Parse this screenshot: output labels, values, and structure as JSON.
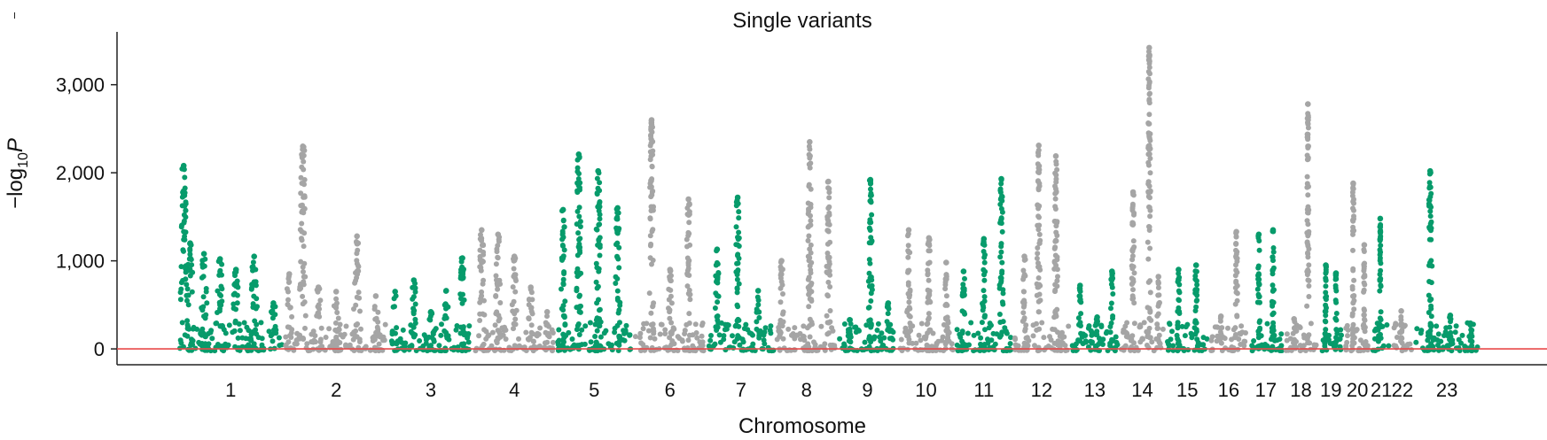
{
  "chart_data": {
    "type": "scatter",
    "subtype": "manhattan",
    "title": "Single variants",
    "xlabel": "Chromosome",
    "ylabel_main": "−log",
    "ylabel_sub": "10",
    "ylabel_italic": "P",
    "ylim": [
      -180,
      3600
    ],
    "yticks": [
      0,
      1000,
      2000,
      3000
    ],
    "ytick_labels": [
      "0",
      "1,000",
      "2,000",
      "3,000"
    ],
    "threshold": 0,
    "colors": {
      "green": "#079b6b",
      "gray": "#a5a5a5",
      "threshold": "#e84a4a",
      "axis": "#222222"
    },
    "chromosomes": [
      {
        "label": "1",
        "color": "green",
        "peaks": [
          [
            0.06,
            2080
          ],
          [
            0.12,
            1200
          ],
          [
            0.25,
            1080
          ],
          [
            0.4,
            1020
          ],
          [
            0.55,
            900
          ],
          [
            0.72,
            1050
          ],
          [
            0.9,
            520
          ]
        ]
      },
      {
        "label": "2",
        "color": "gray",
        "peaks": [
          [
            0.05,
            850
          ],
          [
            0.18,
            2300
          ],
          [
            0.33,
            700
          ],
          [
            0.5,
            650
          ],
          [
            0.7,
            1280
          ],
          [
            0.88,
            600
          ]
        ]
      },
      {
        "label": "3",
        "color": "green",
        "peaks": [
          [
            0.08,
            650
          ],
          [
            0.3,
            780
          ],
          [
            0.5,
            420
          ],
          [
            0.68,
            660
          ],
          [
            0.87,
            1030
          ]
        ]
      },
      {
        "label": "4",
        "color": "gray",
        "peaks": [
          [
            0.1,
            1350
          ],
          [
            0.3,
            1300
          ],
          [
            0.5,
            1050
          ],
          [
            0.7,
            700
          ],
          [
            0.9,
            420
          ]
        ]
      },
      {
        "label": "5",
        "color": "green",
        "peaks": [
          [
            0.1,
            1580
          ],
          [
            0.3,
            2210
          ],
          [
            0.55,
            2020
          ],
          [
            0.8,
            1600
          ]
        ]
      },
      {
        "label": "6",
        "color": "gray",
        "peaks": [
          [
            0.25,
            2600
          ],
          [
            0.5,
            900
          ],
          [
            0.75,
            1700
          ]
        ]
      },
      {
        "label": "7",
        "color": "green",
        "peaks": [
          [
            0.15,
            1130
          ],
          [
            0.45,
            1720
          ],
          [
            0.75,
            660
          ]
        ]
      },
      {
        "label": "8",
        "color": "gray",
        "peaks": [
          [
            0.1,
            1000
          ],
          [
            0.55,
            2350
          ],
          [
            0.85,
            1900
          ]
        ]
      },
      {
        "label": "9",
        "color": "green",
        "peaks": [
          [
            0.2,
            330
          ],
          [
            0.55,
            1920
          ],
          [
            0.85,
            520
          ]
        ]
      },
      {
        "label": "10",
        "color": "gray",
        "peaks": [
          [
            0.2,
            1350
          ],
          [
            0.55,
            1260
          ],
          [
            0.85,
            980
          ]
        ]
      },
      {
        "label": "11",
        "color": "green",
        "peaks": [
          [
            0.15,
            880
          ],
          [
            0.5,
            1250
          ],
          [
            0.8,
            1930
          ]
        ]
      },
      {
        "label": "12",
        "color": "gray",
        "peaks": [
          [
            0.2,
            1050
          ],
          [
            0.45,
            2310
          ],
          [
            0.75,
            2190
          ]
        ]
      },
      {
        "label": "13",
        "color": "green",
        "peaks": [
          [
            0.2,
            720
          ],
          [
            0.55,
            360
          ],
          [
            0.85,
            880
          ]
        ]
      },
      {
        "label": "14",
        "color": "gray",
        "peaks": [
          [
            0.3,
            1780
          ],
          [
            0.65,
            3420
          ],
          [
            0.85,
            820
          ]
        ]
      },
      {
        "label": "15",
        "color": "green",
        "peaks": [
          [
            0.3,
            900
          ],
          [
            0.7,
            950
          ]
        ]
      },
      {
        "label": "16",
        "color": "gray",
        "peaks": [
          [
            0.3,
            370
          ],
          [
            0.7,
            1330
          ]
        ]
      },
      {
        "label": "17",
        "color": "green",
        "peaks": [
          [
            0.3,
            1300
          ],
          [
            0.7,
            1350
          ]
        ]
      },
      {
        "label": "18",
        "color": "gray",
        "peaks": [
          [
            0.3,
            340
          ],
          [
            0.7,
            2780
          ]
        ]
      },
      {
        "label": "19",
        "color": "green",
        "peaks": [
          [
            0.3,
            950
          ],
          [
            0.7,
            860
          ]
        ]
      },
      {
        "label": "20",
        "color": "gray",
        "peaks": [
          [
            0.35,
            1880
          ],
          [
            0.75,
            1180
          ]
        ]
      },
      {
        "label": "21",
        "color": "green",
        "peaks": [
          [
            0.45,
            1480
          ]
        ]
      },
      {
        "label": "22",
        "color": "gray",
        "peaks": [
          [
            0.45,
            430
          ]
        ]
      },
      {
        "label": "23",
        "color": "green",
        "peaks": [
          [
            0.25,
            2020
          ],
          [
            0.55,
            380
          ],
          [
            0.85,
            290
          ]
        ]
      }
    ]
  }
}
